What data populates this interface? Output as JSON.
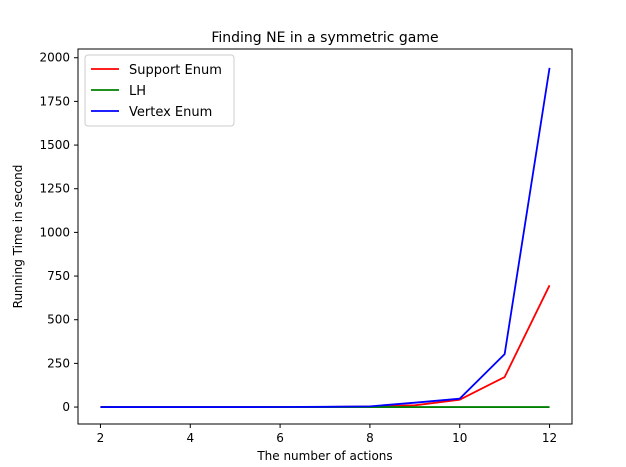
{
  "chart_data": {
    "type": "line",
    "title": "Finding NE in a symmetric game",
    "xlabel": "The number of actions",
    "ylabel": "Running Time in second",
    "x": [
      2,
      3,
      4,
      5,
      6,
      7,
      8,
      9,
      10,
      11,
      12
    ],
    "xlim": [
      1.5,
      12.5
    ],
    "ylim": [
      -97,
      2050
    ],
    "xticks": [
      2,
      4,
      6,
      8,
      10,
      12
    ],
    "yticks": [
      0,
      250,
      500,
      750,
      1000,
      1250,
      1500,
      1750,
      2000
    ],
    "grid": false,
    "legend_position": "top-left",
    "series": [
      {
        "name": "Support Enum",
        "color": "#ff0000",
        "values": [
          0,
          0,
          0,
          0,
          0.2,
          1,
          3,
          10,
          42,
          172,
          697
        ]
      },
      {
        "name": "LH",
        "color": "#008000",
        "values": [
          0,
          0,
          0,
          0,
          0,
          0,
          0,
          0,
          0,
          0,
          0
        ]
      },
      {
        "name": "Vertex Enum",
        "color": "#0000ff",
        "values": [
          0,
          0,
          0,
          0,
          0.3,
          1.5,
          4,
          25,
          48,
          303,
          1942
        ]
      }
    ]
  }
}
